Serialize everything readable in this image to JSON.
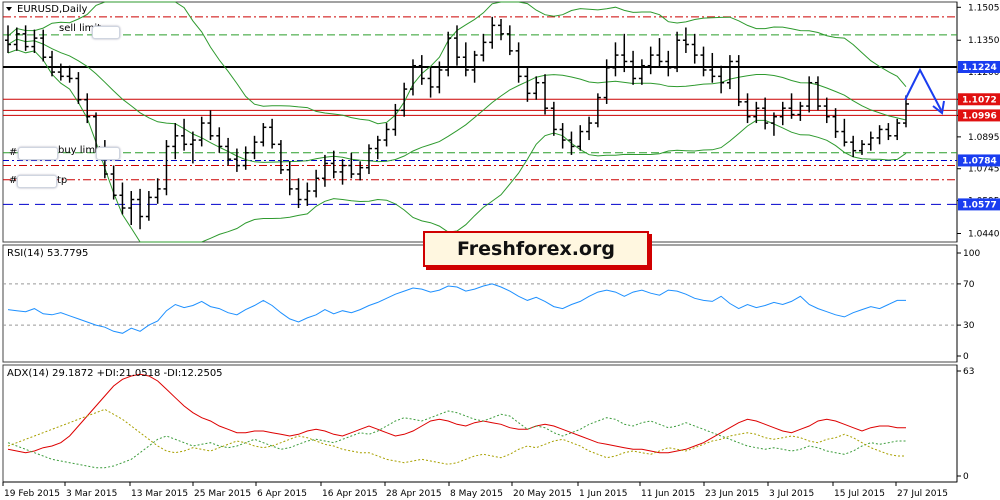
{
  "chart_data": [
    {
      "type": "candlestick",
      "title": "EURUSD,Daily",
      "y_ticks": [
        "1.1505",
        "1.1350",
        "1.1200",
        "1.1072",
        "1.0996",
        "1.0895",
        "1.0745",
        "1.0595",
        "1.0440"
      ],
      "ylim": [
        1.04,
        1.153
      ],
      "x_labels": [
        "19 Feb 2015",
        "3 Mar 2015",
        "13 Mar 2015",
        "25 Mar 2015",
        "6 Apr 2015",
        "16 Apr 2015",
        "28 Apr 2015",
        "8 May 2015",
        "20 May 2015",
        "1 Jun 2015",
        "11 Jun 2015",
        "23 Jun 2015",
        "3 Jul 2015",
        "15 Jul 2015",
        "27 Jul 2015"
      ],
      "levels": [
        {
          "name": "resistance_1224",
          "value": 1.1224,
          "color": "#000000",
          "style": "solid",
          "label": "1.1224",
          "badge": "#1a3df0"
        },
        {
          "name": "level_1072",
          "value": 1.1072,
          "color": "#cc0000",
          "style": "solid",
          "label": "1.1072",
          "badge": "#e01010"
        },
        {
          "name": "level_1096_hidden",
          "value": 1.102,
          "color": "#cc0000",
          "style": "solid",
          "label": "",
          "badge": "#e01010"
        },
        {
          "name": "level_0996",
          "value": 1.0996,
          "color": "#cc0000",
          "style": "solid",
          "label": "1.0996",
          "badge": "#e01010"
        },
        {
          "name": "support_0784",
          "value": 1.0784,
          "color": "#0000cc",
          "style": "dash",
          "label": "1.0784",
          "badge": "#1a3df0"
        },
        {
          "name": "support_0577",
          "value": 1.0577,
          "color": "#0000cc",
          "style": "dash",
          "label": "1.0577",
          "badge": "#1a3df0"
        }
      ],
      "annotations": [
        "sell limit",
        "buy limit",
        "tp"
      ],
      "candles": [
        [
          1.135,
          1.142,
          1.129,
          1.133
        ],
        [
          1.133,
          1.141,
          1.13,
          1.138
        ],
        [
          1.138,
          1.142,
          1.13,
          1.132
        ],
        [
          1.132,
          1.14,
          1.129,
          1.136
        ],
        [
          1.136,
          1.14,
          1.125,
          1.127
        ],
        [
          1.127,
          1.13,
          1.118,
          1.12
        ],
        [
          1.12,
          1.124,
          1.116,
          1.118
        ],
        [
          1.118,
          1.123,
          1.115,
          1.117
        ],
        [
          1.117,
          1.12,
          1.105,
          1.107
        ],
        [
          1.107,
          1.11,
          1.096,
          1.099
        ],
        [
          1.099,
          1.101,
          1.082,
          1.084
        ],
        [
          1.084,
          1.088,
          1.07,
          1.072
        ],
        [
          1.072,
          1.076,
          1.06,
          1.062
        ],
        [
          1.062,
          1.068,
          1.053,
          1.056
        ],
        [
          1.056,
          1.064,
          1.048,
          1.06
        ],
        [
          1.06,
          1.065,
          1.046,
          1.052
        ],
        [
          1.052,
          1.064,
          1.05,
          1.061
        ],
        [
          1.061,
          1.07,
          1.058,
          1.065
        ],
        [
          1.065,
          1.088,
          1.062,
          1.085
        ],
        [
          1.085,
          1.096,
          1.079,
          1.09
        ],
        [
          1.09,
          1.098,
          1.083,
          1.086
        ],
        [
          1.086,
          1.092,
          1.077,
          1.088
        ],
        [
          1.088,
          1.099,
          1.085,
          1.096
        ],
        [
          1.096,
          1.102,
          1.088,
          1.09
        ],
        [
          1.09,
          1.094,
          1.082,
          1.085
        ],
        [
          1.085,
          1.089,
          1.076,
          1.079
        ],
        [
          1.079,
          1.084,
          1.073,
          1.076
        ],
        [
          1.076,
          1.085,
          1.074,
          1.082
        ],
        [
          1.082,
          1.09,
          1.079,
          1.087
        ],
        [
          1.087,
          1.096,
          1.085,
          1.094
        ],
        [
          1.094,
          1.098,
          1.084,
          1.086
        ],
        [
          1.086,
          1.088,
          1.072,
          1.074
        ],
        [
          1.074,
          1.078,
          1.062,
          1.065
        ],
        [
          1.065,
          1.07,
          1.056,
          1.06
        ],
        [
          1.06,
          1.068,
          1.057,
          1.064
        ],
        [
          1.064,
          1.074,
          1.061,
          1.07
        ],
        [
          1.07,
          1.081,
          1.066,
          1.077
        ],
        [
          1.077,
          1.083,
          1.07,
          1.073
        ],
        [
          1.073,
          1.079,
          1.067,
          1.076
        ],
        [
          1.076,
          1.082,
          1.07,
          1.072
        ],
        [
          1.072,
          1.078,
          1.069,
          1.075
        ],
        [
          1.075,
          1.086,
          1.072,
          1.084
        ],
        [
          1.084,
          1.09,
          1.079,
          1.088
        ],
        [
          1.088,
          1.096,
          1.085,
          1.093
        ],
        [
          1.093,
          1.105,
          1.09,
          1.102
        ],
        [
          1.102,
          1.115,
          1.099,
          1.112
        ],
        [
          1.112,
          1.126,
          1.109,
          1.123
        ],
        [
          1.123,
          1.128,
          1.114,
          1.117
        ],
        [
          1.117,
          1.122,
          1.108,
          1.113
        ],
        [
          1.113,
          1.125,
          1.11,
          1.121
        ],
        [
          1.121,
          1.139,
          1.118,
          1.136
        ],
        [
          1.136,
          1.142,
          1.123,
          1.127
        ],
        [
          1.127,
          1.134,
          1.118,
          1.121
        ],
        [
          1.121,
          1.13,
          1.115,
          1.128
        ],
        [
          1.128,
          1.138,
          1.125,
          1.134
        ],
        [
          1.134,
          1.146,
          1.131,
          1.142
        ],
        [
          1.142,
          1.145,
          1.135,
          1.138
        ],
        [
          1.138,
          1.142,
          1.128,
          1.13
        ],
        [
          1.13,
          1.134,
          1.115,
          1.118
        ],
        [
          1.118,
          1.122,
          1.106,
          1.11
        ],
        [
          1.11,
          1.118,
          1.107,
          1.115
        ],
        [
          1.115,
          1.119,
          1.1,
          1.103
        ],
        [
          1.103,
          1.106,
          1.09,
          1.093
        ],
        [
          1.093,
          1.096,
          1.084,
          1.088
        ],
        [
          1.088,
          1.092,
          1.081,
          1.085
        ],
        [
          1.085,
          1.095,
          1.083,
          1.092
        ],
        [
          1.092,
          1.099,
          1.088,
          1.096
        ],
        [
          1.096,
          1.11,
          1.094,
          1.108
        ],
        [
          1.108,
          1.126,
          1.105,
          1.122
        ],
        [
          1.122,
          1.134,
          1.118,
          1.128
        ],
        [
          1.128,
          1.138,
          1.12,
          1.125
        ],
        [
          1.125,
          1.13,
          1.114,
          1.117
        ],
        [
          1.117,
          1.126,
          1.114,
          1.123
        ],
        [
          1.123,
          1.132,
          1.119,
          1.128
        ],
        [
          1.128,
          1.136,
          1.122,
          1.125
        ],
        [
          1.125,
          1.13,
          1.118,
          1.122
        ],
        [
          1.122,
          1.139,
          1.12,
          1.135
        ],
        [
          1.135,
          1.141,
          1.129,
          1.133
        ],
        [
          1.133,
          1.138,
          1.124,
          1.128
        ],
        [
          1.128,
          1.132,
          1.118,
          1.121
        ],
        [
          1.121,
          1.129,
          1.115,
          1.118
        ],
        [
          1.118,
          1.123,
          1.11,
          1.115
        ],
        [
          1.115,
          1.128,
          1.112,
          1.125
        ],
        [
          1.125,
          1.128,
          1.104,
          1.106
        ],
        [
          1.106,
          1.11,
          1.096,
          1.099
        ],
        [
          1.099,
          1.106,
          1.096,
          1.103
        ],
        [
          1.103,
          1.108,
          1.093,
          1.096
        ],
        [
          1.096,
          1.101,
          1.09,
          1.099
        ],
        [
          1.099,
          1.106,
          1.095,
          1.103
        ],
        [
          1.103,
          1.11,
          1.098,
          1.1
        ],
        [
          1.1,
          1.106,
          1.097,
          1.104
        ],
        [
          1.104,
          1.118,
          1.101,
          1.115
        ],
        [
          1.115,
          1.118,
          1.102,
          1.104
        ],
        [
          1.104,
          1.108,
          1.096,
          1.099
        ],
        [
          1.099,
          1.103,
          1.089,
          1.092
        ],
        [
          1.092,
          1.098,
          1.085,
          1.087
        ],
        [
          1.087,
          1.09,
          1.08,
          1.083
        ],
        [
          1.083,
          1.088,
          1.081,
          1.086
        ],
        [
          1.086,
          1.092,
          1.083,
          1.089
        ],
        [
          1.089,
          1.095,
          1.086,
          1.093
        ],
        [
          1.093,
          1.096,
          1.088,
          1.09
        ],
        [
          1.09,
          1.098,
          1.088,
          1.096
        ],
        [
          1.096,
          1.109,
          1.094,
          1.105
        ]
      ]
    },
    {
      "type": "line",
      "title": "RSI(14) 53.7795",
      "y_ticks": [
        "100",
        "70",
        "30",
        "0"
      ],
      "ylim": [
        0,
        100
      ],
      "levels": [
        70,
        30
      ],
      "series": [
        {
          "color": "#1e90ff",
          "values": [
            45,
            44,
            43,
            46,
            41,
            40,
            42,
            39,
            36,
            33,
            30,
            28,
            24,
            22,
            27,
            24,
            30,
            34,
            44,
            50,
            47,
            49,
            53,
            48,
            46,
            42,
            40,
            45,
            49,
            54,
            49,
            42,
            36,
            33,
            37,
            40,
            45,
            41,
            44,
            42,
            45,
            49,
            52,
            56,
            60,
            63,
            66,
            65,
            62,
            64,
            68,
            67,
            63,
            65,
            68,
            70,
            67,
            63,
            58,
            54,
            57,
            53,
            48,
            46,
            50,
            53,
            58,
            62,
            64,
            62,
            58,
            62,
            64,
            61,
            59,
            64,
            63,
            60,
            56,
            54,
            53,
            58,
            51,
            46,
            50,
            47,
            49,
            52,
            50,
            53,
            58,
            50,
            46,
            43,
            40,
            38,
            42,
            45,
            48,
            46,
            50,
            54,
            54
          ]
        }
      ]
    },
    {
      "type": "line",
      "title": "ADX(14) 29.1872 +DI:21.0518 -DI:12.2505",
      "y_ticks": [
        "63",
        "0"
      ],
      "ylim": [
        0,
        63
      ],
      "series": [
        {
          "color": "#dd0000",
          "values": [
            16,
            15,
            14,
            15,
            17,
            18,
            20,
            24,
            30,
            36,
            42,
            48,
            54,
            58,
            60,
            61,
            60,
            57,
            52,
            47,
            42,
            38,
            35,
            33,
            30,
            28,
            26,
            26,
            27,
            27,
            26,
            25,
            24,
            25,
            27,
            28,
            27,
            25,
            24,
            26,
            28,
            30,
            28,
            26,
            24,
            25,
            27,
            30,
            33,
            34,
            33,
            31,
            30,
            32,
            33,
            32,
            31,
            29,
            28,
            28,
            30,
            31,
            30,
            28,
            26,
            24,
            22,
            20,
            19,
            18,
            17,
            16,
            16,
            15,
            14,
            14,
            15,
            16,
            18,
            20,
            23,
            26,
            29,
            32,
            34,
            33,
            31,
            29,
            27,
            26,
            28,
            30,
            33,
            34,
            33,
            31,
            29,
            27,
            29,
            30,
            30,
            29,
            29
          ]
        },
        {
          "color": "#3c9c3c",
          "dash": "2,2",
          "values": [
            20,
            18,
            16,
            14,
            12,
            10,
            9,
            8,
            7,
            6,
            5,
            5,
            6,
            8,
            10,
            14,
            18,
            22,
            24,
            22,
            20,
            18,
            19,
            20,
            18,
            17,
            18,
            20,
            22,
            20,
            18,
            16,
            17,
            19,
            21,
            22,
            21,
            20,
            22,
            24,
            26,
            25,
            27,
            30,
            33,
            35,
            34,
            33,
            35,
            37,
            39,
            38,
            36,
            34,
            33,
            35,
            37,
            36,
            32,
            28,
            30,
            29,
            26,
            24,
            26,
            28,
            31,
            33,
            35,
            34,
            31,
            30,
            32,
            33,
            31,
            29,
            30,
            32,
            30,
            28,
            26,
            24,
            22,
            20,
            18,
            17,
            16,
            17,
            16,
            15,
            16,
            18,
            17,
            15,
            14,
            13,
            15,
            18,
            20,
            19,
            20,
            21,
            21
          ]
        },
        {
          "color": "#a8a000",
          "dash": "2,2",
          "values": [
            18,
            20,
            22,
            24,
            26,
            28,
            30,
            32,
            34,
            36,
            38,
            40,
            37,
            34,
            30,
            26,
            22,
            18,
            15,
            14,
            15,
            17,
            16,
            15,
            17,
            19,
            21,
            20,
            18,
            17,
            18,
            20,
            22,
            24,
            23,
            21,
            19,
            18,
            16,
            15,
            14,
            14,
            12,
            10,
            9,
            8,
            9,
            10,
            9,
            8,
            7,
            8,
            10,
            12,
            13,
            12,
            11,
            13,
            16,
            18,
            17,
            19,
            21,
            22,
            20,
            18,
            15,
            13,
            11,
            12,
            14,
            15,
            14,
            13,
            15,
            17,
            16,
            15,
            17,
            19,
            21,
            22,
            24,
            25,
            26,
            25,
            23,
            22,
            23,
            24,
            23,
            21,
            20,
            22,
            23,
            25,
            23,
            20,
            17,
            15,
            13,
            12,
            12
          ]
        }
      ]
    }
  ],
  "brand": {
    "text": "Freshforex.org"
  }
}
